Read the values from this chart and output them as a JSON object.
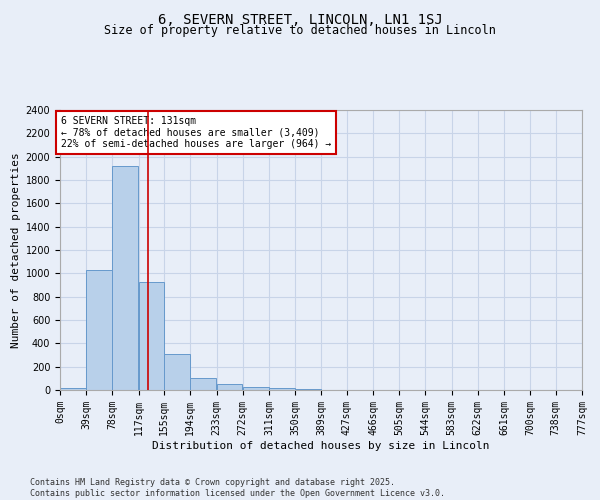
{
  "title": "6, SEVERN STREET, LINCOLN, LN1 1SJ",
  "subtitle": "Size of property relative to detached houses in Lincoln",
  "xlabel": "Distribution of detached houses by size in Lincoln",
  "ylabel": "Number of detached properties",
  "annotation_line1": "6 SEVERN STREET: 131sqm",
  "annotation_line2": "← 78% of detached houses are smaller (3,409)",
  "annotation_line3": "22% of semi-detached houses are larger (964) →",
  "bin_edges": [
    0,
    39,
    78,
    117,
    155,
    194,
    233,
    272,
    311,
    350,
    389,
    427,
    466,
    505,
    544,
    583,
    622,
    661,
    700,
    738,
    777
  ],
  "bin_labels": [
    "0sqm",
    "39sqm",
    "78sqm",
    "117sqm",
    "155sqm",
    "194sqm",
    "233sqm",
    "272sqm",
    "311sqm",
    "350sqm",
    "389sqm",
    "427sqm",
    "466sqm",
    "505sqm",
    "544sqm",
    "583sqm",
    "622sqm",
    "661sqm",
    "700sqm",
    "738sqm",
    "777sqm"
  ],
  "bar_values": [
    15,
    1025,
    1920,
    930,
    310,
    105,
    48,
    25,
    15,
    10,
    3,
    0,
    0,
    0,
    0,
    0,
    0,
    0,
    0,
    0
  ],
  "bar_color": "#b8d0ea",
  "bar_edge_color": "#6699cc",
  "vline_x": 131,
  "vline_color": "#cc0000",
  "ylim": [
    0,
    2400
  ],
  "yticks": [
    0,
    200,
    400,
    600,
    800,
    1000,
    1200,
    1400,
    1600,
    1800,
    2000,
    2200,
    2400
  ],
  "grid_color": "#c8d4e8",
  "background_color": "#e8eef8",
  "plot_bg_color": "#e8eef8",
  "footer_line1": "Contains HM Land Registry data © Crown copyright and database right 2025.",
  "footer_line2": "Contains public sector information licensed under the Open Government Licence v3.0.",
  "annotation_box_color": "#cc0000",
  "annotation_box_fill": "#ffffff",
  "title_fontsize": 10,
  "subtitle_fontsize": 8.5,
  "ylabel_fontsize": 8,
  "xlabel_fontsize": 8,
  "tick_fontsize": 7,
  "annotation_fontsize": 7,
  "footer_fontsize": 6
}
